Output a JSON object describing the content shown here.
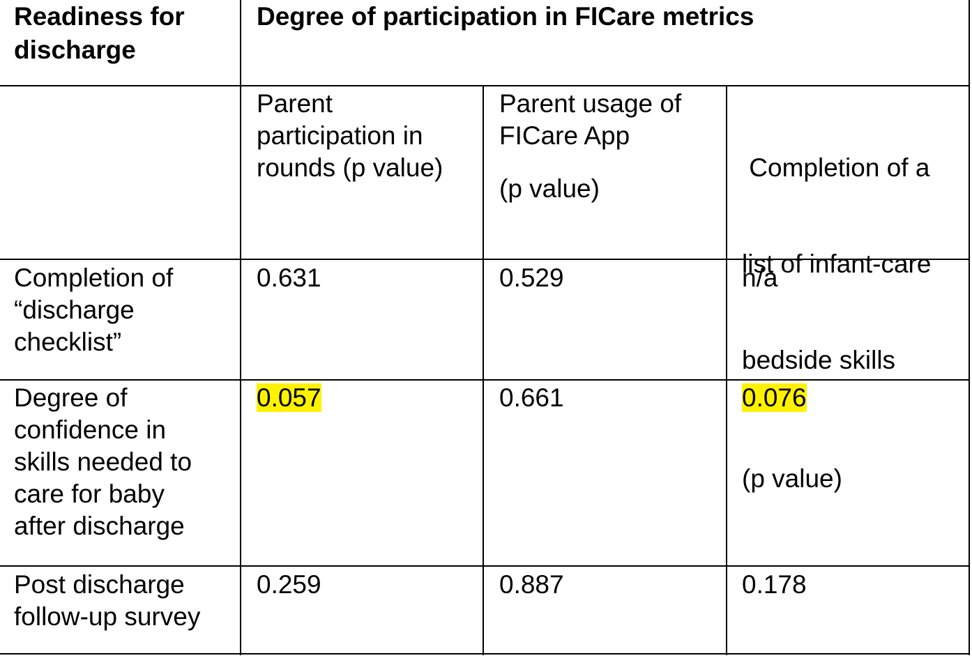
{
  "table": {
    "corner_header": [
      "Readiness for",
      "discharge"
    ],
    "group_header": "Degree of participation in FICare metrics",
    "columns": [
      {
        "lines": [
          "Parent",
          "participation in",
          "rounds (p value)"
        ],
        "suffix": ""
      },
      {
        "lines": [
          "Parent usage of",
          "FICare App"
        ],
        "suffix": "(p value)"
      },
      {
        "lines": [
          " Completion of a",
          "list of infant-care",
          "bedside skills"
        ],
        "suffix": "(p value)"
      }
    ],
    "rows": [
      {
        "label": [
          "Completion of",
          "“discharge",
          "checklist”"
        ],
        "values": [
          "0.631",
          "0.529",
          "n/a"
        ]
      },
      {
        "label": [
          "Degree of",
          "confidence in",
          "skills needed to",
          "care for baby",
          "after discharge"
        ],
        "values": [
          "0.057",
          "0.661",
          "0.076"
        ],
        "highlighted": [
          true,
          false,
          true
        ]
      },
      {
        "label": [
          "Post discharge",
          "follow-up survey"
        ],
        "values": [
          "0.259",
          "0.887",
          "0.178"
        ]
      }
    ],
    "highlight_color": "#fff200"
  }
}
